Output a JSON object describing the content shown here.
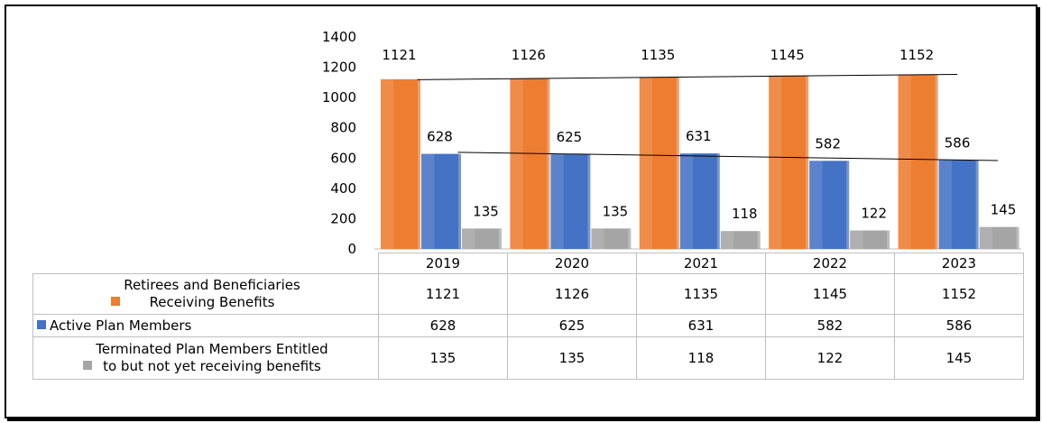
{
  "chart_data": {
    "type": "bar",
    "title": "",
    "xlabel": "",
    "ylabel": "",
    "ylim": [
      0,
      1400
    ],
    "yticks": [
      0,
      200,
      400,
      600,
      800,
      1000,
      1200,
      1400
    ],
    "ytick_labels": [
      "0",
      "200",
      "400",
      "600",
      "800",
      "1000",
      "1200",
      "1400"
    ],
    "grid": false,
    "legend": "data-table",
    "categories": [
      "2019",
      "2020",
      "2021",
      "2022",
      "2023"
    ],
    "series": [
      {
        "name": "Retirees and Beneficiaries Receiving Benefits",
        "name_line1": "Retirees and Beneficiaries",
        "name_line2": "Receiving Benefits",
        "color": "#ed7d31",
        "values": [
          1121,
          1126,
          1135,
          1145,
          1152
        ],
        "labels": [
          "1121",
          "1126",
          "1135",
          "1145",
          "1152"
        ]
      },
      {
        "name": "Active Plan Members",
        "name_line1": "Active Plan Members",
        "name_line2": "",
        "color": "#4472c4",
        "values": [
          628,
          625,
          631,
          582,
          586
        ],
        "labels": [
          "628",
          "625",
          "631",
          "582",
          "586"
        ]
      },
      {
        "name": "Terminated Plan Members Entitled to but not yet receiving benefits",
        "name_line1": "Terminated Plan Members Entitled",
        "name_line2": "to but not yet receiving benefits",
        "color": "#a5a5a5",
        "values": [
          135,
          135,
          118,
          122,
          145
        ],
        "labels": [
          "135",
          "135",
          "118",
          "122",
          "145"
        ]
      }
    ],
    "trendlines": [
      "Retirees and Beneficiaries Receiving Benefits",
      "Active Plan Members"
    ]
  }
}
